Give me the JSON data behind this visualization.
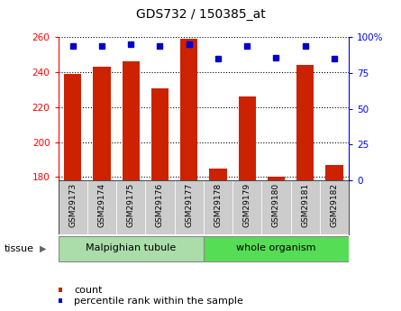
{
  "title": "GDS732 / 150385_at",
  "samples": [
    "GSM29173",
    "GSM29174",
    "GSM29175",
    "GSM29176",
    "GSM29177",
    "GSM29178",
    "GSM29179",
    "GSM29180",
    "GSM29181",
    "GSM29182"
  ],
  "counts": [
    239,
    243,
    246,
    231,
    259,
    185,
    226,
    180,
    244,
    187
  ],
  "percentiles": [
    94,
    94,
    95,
    94,
    95,
    85,
    94,
    86,
    94,
    85
  ],
  "bar_color": "#CC2200",
  "dot_color": "#0000CC",
  "ymin": 178,
  "ymax": 260,
  "yticks": [
    180,
    200,
    220,
    240,
    260
  ],
  "y2min": 0,
  "y2max": 100,
  "y2ticks": [
    0,
    25,
    50,
    75,
    100
  ],
  "y2ticklabels": [
    "0",
    "25",
    "50",
    "75",
    "100%"
  ],
  "group1_label": "Malpighian tubule",
  "group2_label": "whole organism",
  "group1_split": 5,
  "tissue_label": "tissue",
  "legend_count": "count",
  "legend_pct": "percentile rank within the sample",
  "malpighian_color": "#AADDAA",
  "whole_org_color": "#55DD55",
  "tick_bg_color": "#CCCCCC",
  "n_group1": 5,
  "n_group2": 5
}
